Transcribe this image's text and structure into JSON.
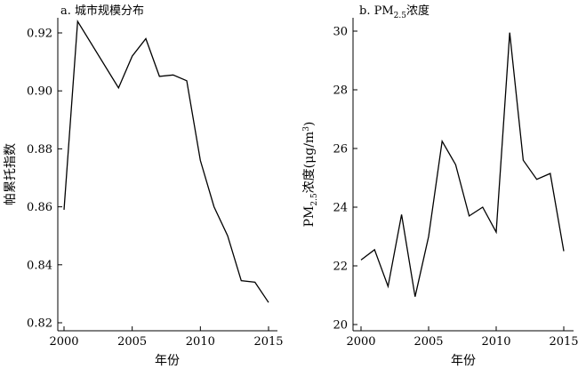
{
  "chart_data": [
    {
      "type": "line",
      "title": "a. 城市规模分布",
      "xlabel": "年份",
      "ylabel": "帕累托指数",
      "xlim": [
        1999.5,
        2015.5
      ],
      "ylim": [
        0.82,
        0.925
      ],
      "xticks": [
        2000,
        2005,
        2010,
        2015
      ],
      "yticks": [
        0.82,
        0.84,
        0.86,
        0.88,
        0.9,
        0.92
      ],
      "ytick_labels": [
        "0.82",
        "0.84",
        "0.86",
        "0.88",
        "0.90",
        "0.92"
      ],
      "grid": false,
      "series": [
        {
          "x": [
            2000,
            2001,
            2004,
            2005,
            2006,
            2007,
            2008,
            2009,
            2010,
            2011,
            2012,
            2013,
            2014,
            2015
          ],
          "y": [
            0.859,
            0.924,
            0.901,
            0.912,
            0.918,
            0.905,
            0.9055,
            0.9035,
            0.876,
            0.86,
            0.85,
            0.8345,
            0.834,
            0.827
          ]
        }
      ]
    },
    {
      "type": "line",
      "title": "b. PM",
      "title_sub": "2.5",
      "title_suffix": "浓度",
      "xlabel": "年份",
      "ylabel_prefix": "PM",
      "ylabel_sub": "2.5",
      "ylabel_mid": "浓度(μg/m",
      "ylabel_sup": "3",
      "ylabel_end": ")",
      "xlim": [
        1999.5,
        2015.5
      ],
      "ylim": [
        20,
        30.3
      ],
      "xticks": [
        2000,
        2005,
        2010,
        2015
      ],
      "yticks": [
        20,
        22,
        24,
        26,
        28,
        30
      ],
      "ytick_labels": [
        "20",
        "22",
        "24",
        "26",
        "28",
        "30"
      ],
      "grid": false,
      "series": [
        {
          "x": [
            2000,
            2001,
            2002,
            2003,
            2004,
            2005,
            2006,
            2007,
            2008,
            2009,
            2010,
            2011,
            2012,
            2013,
            2014,
            2015
          ],
          "y": [
            22.2,
            22.55,
            21.3,
            23.75,
            20.95,
            23.0,
            26.25,
            25.45,
            23.7,
            24.0,
            23.15,
            29.95,
            25.6,
            24.95,
            25.15,
            22.5
          ]
        }
      ]
    }
  ]
}
